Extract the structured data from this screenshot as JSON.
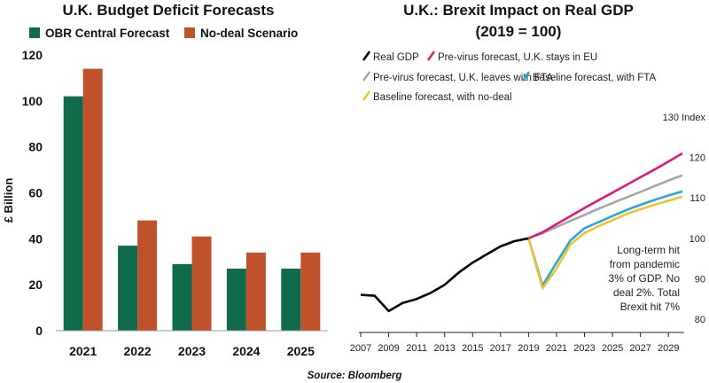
{
  "source": "Source: Bloomberg",
  "chart_data": [
    {
      "type": "bar",
      "title": "U.K. Budget Deficit Forecasts",
      "xlabel": "",
      "ylabel": "£ Billion",
      "ylim": [
        0,
        120
      ],
      "yticks": [
        0,
        20,
        40,
        60,
        80,
        100,
        120
      ],
      "categories": [
        "2021",
        "2022",
        "2023",
        "2024",
        "2025"
      ],
      "series": [
        {
          "name": "OBR Central Forecast",
          "color": "#0f6b49",
          "values": [
            102,
            37,
            29,
            27,
            27
          ]
        },
        {
          "name": "No-deal Scenario",
          "color": "#c0522b",
          "values": [
            114,
            48,
            41,
            34,
            34
          ]
        }
      ],
      "legend": "top",
      "grid": false
    },
    {
      "type": "line",
      "title": "U.K.: Brexit Impact on Real GDP",
      "subtitle": "(2019 = 100)",
      "xlabel": "",
      "ylabel": "Index",
      "xlim": [
        2007,
        2030
      ],
      "ylim": [
        80,
        130
      ],
      "yticks": [
        80,
        90,
        100,
        110,
        120,
        130
      ],
      "ytick_labels": [
        "80",
        "90",
        "100",
        "110",
        "120",
        "130 Index"
      ],
      "xticks": [
        2007,
        2009,
        2011,
        2013,
        2015,
        2017,
        2019,
        2021,
        2023,
        2025,
        2027,
        2029
      ],
      "legend": "top-left",
      "grid": false,
      "annotation": [
        "Long-term hit",
        "from pandemic",
        "3% of GDP. No",
        "deal 2%. Total",
        "Brexit hit 7%"
      ],
      "series": [
        {
          "name": "Real GDP",
          "color": "#000000",
          "x": [
            2007,
            2008,
            2009,
            2010,
            2011,
            2012,
            2013,
            2014,
            2015,
            2016,
            2017,
            2018,
            2019
          ],
          "y": [
            86.0,
            85.8,
            82.0,
            84.0,
            85.0,
            86.5,
            88.5,
            91.5,
            94.0,
            96.0,
            98.0,
            99.3,
            100.0
          ]
        },
        {
          "name": "Pre-virus forecast, U.K. stays in EU",
          "color": "#e0197d",
          "x": [
            2019,
            2020,
            2021,
            2022,
            2023,
            2024,
            2025,
            2026,
            2027,
            2028,
            2029,
            2030
          ],
          "y": [
            100.0,
            101.5,
            103.5,
            105.5,
            107.5,
            109.4,
            111.3,
            113.2,
            115.1,
            117.0,
            119.0,
            121.0
          ]
        },
        {
          "name": "Pre-virus forecast, U.K. leaves with FTA",
          "color": "#a6a6a6",
          "x": [
            2019,
            2020,
            2021,
            2022,
            2023,
            2024,
            2025,
            2026,
            2027,
            2028,
            2029,
            2030
          ],
          "y": [
            100.0,
            101.3,
            102.8,
            104.3,
            105.8,
            107.3,
            108.7,
            110.1,
            111.5,
            112.9,
            114.3,
            115.6
          ]
        },
        {
          "name": "Baseline forecast, with FTA",
          "color": "#2aa6dc",
          "x": [
            2019,
            2020,
            2021,
            2022,
            2023,
            2024,
            2025,
            2026,
            2027,
            2028,
            2029,
            2030
          ],
          "y": [
            100.0,
            88.3,
            94.0,
            99.5,
            102.5,
            104.0,
            105.5,
            107.0,
            108.3,
            109.5,
            110.6,
            111.6
          ]
        },
        {
          "name": "Baseline forecast, with no-deal",
          "color": "#f2c12e",
          "x": [
            2019,
            2020,
            2021,
            2022,
            2023,
            2024,
            2025,
            2026,
            2027,
            2028,
            2029,
            2030
          ],
          "y": [
            100.0,
            87.6,
            92.5,
            98.5,
            101.3,
            103.0,
            104.5,
            106.0,
            107.2,
            108.3,
            109.3,
            110.3
          ]
        }
      ]
    }
  ]
}
